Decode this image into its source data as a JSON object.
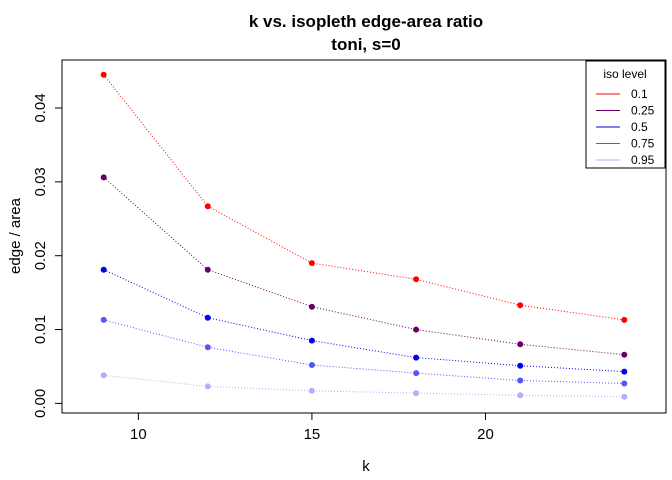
{
  "chart_data": {
    "type": "line",
    "title": "k vs. isopleth edge-area ratio",
    "subtitle": "toni, s=0",
    "xlabel": "k",
    "ylabel": "edge / area",
    "x": [
      9,
      12,
      15,
      18,
      21,
      24
    ],
    "xlim": [
      7.8,
      25.2
    ],
    "ylim": [
      -0.0013,
      0.0465
    ],
    "xticks": [
      "10",
      "15",
      "20"
    ],
    "xtick_values": [
      10,
      15,
      20
    ],
    "yticks": [
      "0.00",
      "0.01",
      "0.02",
      "0.03",
      "0.04"
    ],
    "ytick_values": [
      0,
      0.01,
      0.02,
      0.03,
      0.04
    ],
    "grid": false,
    "legend_title": "iso level",
    "legend_position": "top-right",
    "line_style": "dotted",
    "series": [
      {
        "name": "0.1",
        "color": "#ff0000",
        "values": [
          0.0445,
          0.0267,
          0.019,
          0.0168,
          0.0133,
          0.0113
        ]
      },
      {
        "name": "0.25",
        "color": "#660066",
        "values": [
          0.0306,
          0.0181,
          0.0131,
          0.01,
          0.008,
          0.0066
        ]
      },
      {
        "name": "0.5",
        "color": "#0000ee",
        "values": [
          0.0181,
          0.0116,
          0.0085,
          0.0062,
          0.0051,
          0.0043
        ]
      },
      {
        "name": "0.75",
        "color": "#5555ff",
        "values": [
          0.0113,
          0.0076,
          0.0052,
          0.0041,
          0.0031,
          0.0027
        ]
      },
      {
        "name": "0.95",
        "color": "#b0b0ff",
        "values": [
          0.0038,
          0.0023,
          0.0017,
          0.0014,
          0.0011,
          0.0009
        ]
      }
    ]
  }
}
